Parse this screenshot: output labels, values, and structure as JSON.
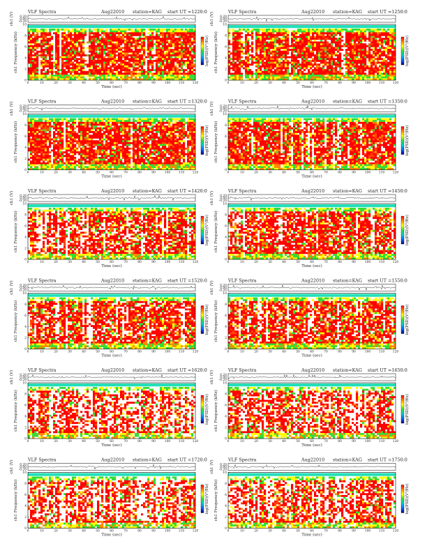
{
  "page": {
    "title_prefix": "VLF Spectra"
  },
  "colors": {
    "spectrogram": [
      "#ff0000",
      "#ff4400",
      "#ff8800",
      "#ffcc00",
      "#ffff00",
      "#99ee33",
      "#33dd33"
    ],
    "colorbar": [
      "#ff0000",
      "#ff8800",
      "#ffff00",
      "#33dd33",
      "#00cccc",
      "#0066ff",
      "#000088"
    ],
    "top_band": "#22e0b8",
    "trace": "#222222",
    "axis": "#000000"
  },
  "chart_data": [
    {
      "type": "heatmap",
      "header": {
        "title": "VLF Spectra",
        "date": "Aug22010",
        "station": "station=KAG",
        "start": "start UT =1220:0"
      },
      "trace_ylabel": "ch1 (V)",
      "trace_yticks": [
        "0.20",
        "0.00",
        "-0.20"
      ],
      "ylabel": "ch1\nFrequency (kHz)",
      "xlabel": "Time (sec)",
      "x": [
        0,
        10,
        20,
        30,
        40,
        50,
        60,
        70,
        80,
        90,
        100,
        110,
        120
      ],
      "y": [
        0,
        2,
        4,
        6,
        8,
        10
      ],
      "xlim": [
        0,
        120
      ],
      "ylim": [
        0,
        10
      ],
      "colorbar_label": "log(PSD)(V²/Hz)"
    },
    {
      "type": "heatmap",
      "header": {
        "title": "VLF Spectra",
        "date": "Aug22010",
        "station": "station=KAG",
        "start": "start UT =1250:0"
      },
      "trace_ylabel": "ch1 (V)",
      "trace_yticks": [
        "0.20",
        "0.00",
        "-0.20"
      ],
      "ylabel": "ch1\nFrequency (kHz)",
      "xlabel": "Time (sec)",
      "x": [
        0,
        10,
        20,
        30,
        40,
        50,
        60,
        70,
        80,
        90,
        100,
        110,
        120
      ],
      "y": [
        0,
        2,
        4,
        6,
        8,
        10
      ],
      "xlim": [
        0,
        120
      ],
      "ylim": [
        0,
        10
      ],
      "colorbar_label": "log(PSD)(V²/Hz)"
    },
    {
      "type": "heatmap",
      "header": {
        "title": "VLF Spectra",
        "date": "Aug22010",
        "station": "station=KAG",
        "start": "start UT =1320:0"
      },
      "trace_ylabel": "ch1 (V)",
      "trace_yticks": [
        "0.20",
        "0.00",
        "-0.20"
      ],
      "ylabel": "ch1\nFrequency (kHz)",
      "xlabel": "Time (sec)",
      "x": [
        0,
        10,
        20,
        30,
        40,
        50,
        60,
        70,
        80,
        90,
        100,
        110,
        120
      ],
      "y": [
        0,
        2,
        4,
        6,
        8,
        10
      ],
      "xlim": [
        0,
        120
      ],
      "ylim": [
        0,
        10
      ],
      "colorbar_label": "log(PSD)(V²/Hz)"
    },
    {
      "type": "heatmap",
      "header": {
        "title": "VLF Spectra",
        "date": "Aug22010",
        "station": "station=KAG",
        "start": "start UT =1350:0"
      },
      "trace_ylabel": "ch1 (V)",
      "trace_yticks": [
        "0.20",
        "0.00",
        "-0.20"
      ],
      "ylabel": "ch1\nFrequency (kHz)",
      "xlabel": "Time (sec)",
      "x": [
        0,
        10,
        20,
        30,
        40,
        50,
        60,
        70,
        80,
        90,
        100,
        110,
        120
      ],
      "y": [
        0,
        2,
        4,
        6,
        8,
        10
      ],
      "xlim": [
        0,
        120
      ],
      "ylim": [
        0,
        10
      ],
      "colorbar_label": "log(PSD)(V²/Hz)"
    },
    {
      "type": "heatmap",
      "header": {
        "title": "VLF Spectra",
        "date": "Aug22010",
        "station": "station=KAG",
        "start": "start UT =1420:0"
      },
      "trace_ylabel": "ch1 (V)",
      "trace_yticks": [
        "0.20",
        "0.00",
        "-0.20"
      ],
      "ylabel": "ch1\nFrequency (kHz)",
      "xlabel": "Time (sec)",
      "x": [
        0,
        10,
        20,
        30,
        40,
        50,
        60,
        70,
        80,
        90,
        100,
        110,
        120
      ],
      "y": [
        0,
        2,
        4,
        6,
        8,
        10
      ],
      "xlim": [
        0,
        120
      ],
      "ylim": [
        0,
        10
      ],
      "colorbar_label": "log(PSD)(V²/Hz)"
    },
    {
      "type": "heatmap",
      "header": {
        "title": "VLF Spectra",
        "date": "Aug22010",
        "station": "station=KAG",
        "start": "start UT =1450:0"
      },
      "trace_ylabel": "ch1 (V)",
      "trace_yticks": [
        "0.20",
        "0.00",
        "-0.20"
      ],
      "ylabel": "ch1\nFrequency (kHz)",
      "xlabel": "Time (sec)",
      "x": [
        0,
        10,
        20,
        30,
        40,
        50,
        60,
        70,
        80,
        90,
        100,
        110,
        120
      ],
      "y": [
        0,
        2,
        4,
        6,
        8,
        10
      ],
      "xlim": [
        0,
        120
      ],
      "ylim": [
        0,
        10
      ],
      "colorbar_label": "log(PSD)(V²/Hz)"
    },
    {
      "type": "heatmap",
      "header": {
        "title": "VLF Spectra",
        "date": "Aug22010",
        "station": "station=KAG",
        "start": "start UT =1520:0"
      },
      "trace_ylabel": "ch1 (V)",
      "trace_yticks": [
        "0.20",
        "0.00",
        "-0.20"
      ],
      "ylabel": "ch1\nFrequency (kHz)",
      "xlabel": "Time (sec)",
      "x": [
        0,
        10,
        20,
        30,
        40,
        50,
        60,
        70,
        80,
        90,
        100,
        110,
        120
      ],
      "y": [
        0,
        2,
        4,
        6,
        8,
        10
      ],
      "xlim": [
        0,
        120
      ],
      "ylim": [
        0,
        10
      ],
      "colorbar_label": "log(PSD)(V²/Hz)"
    },
    {
      "type": "heatmap",
      "header": {
        "title": "VLF Spectra",
        "date": "Aug22010",
        "station": "station=KAG",
        "start": "start UT =1550:0"
      },
      "trace_ylabel": "ch1 (V)",
      "trace_yticks": [
        "0.20",
        "0.00",
        "-0.20"
      ],
      "ylabel": "ch1\nFrequency (kHz)",
      "xlabel": "Time (sec)",
      "x": [
        0,
        10,
        20,
        30,
        40,
        50,
        60,
        70,
        80,
        90,
        100,
        110,
        120
      ],
      "y": [
        0,
        2,
        4,
        6,
        8,
        10
      ],
      "xlim": [
        0,
        120
      ],
      "ylim": [
        0,
        10
      ],
      "colorbar_label": "log(PSD)(V²/Hz)"
    },
    {
      "type": "heatmap",
      "header": {
        "title": "VLF Spectra",
        "date": "Aug22010",
        "station": "station=KAG",
        "start": "start UT =1620:0"
      },
      "trace_ylabel": "ch1 (V)",
      "trace_yticks": [
        "0.20",
        "0.00",
        "-0.20"
      ],
      "ylabel": "ch1\nFrequency (kHz)",
      "xlabel": "Time (sec)",
      "x": [
        0,
        10,
        20,
        30,
        40,
        50,
        60,
        70,
        80,
        90,
        100,
        110,
        120
      ],
      "y": [
        0,
        2,
        4,
        6,
        8,
        10
      ],
      "xlim": [
        0,
        120
      ],
      "ylim": [
        0,
        10
      ],
      "colorbar_label": "log(PSD)(V²/Hz)"
    },
    {
      "type": "heatmap",
      "header": {
        "title": "VLF Spectra",
        "date": "Aug22010",
        "station": "station=KAG",
        "start": "start UT =1650:0"
      },
      "trace_ylabel": "ch1 (V)",
      "trace_yticks": [
        "0.20",
        "0.00",
        "-0.20"
      ],
      "ylabel": "ch1\nFrequency (kHz)",
      "xlabel": "Time (sec)",
      "x": [
        0,
        10,
        20,
        30,
        40,
        50,
        60,
        70,
        80,
        90,
        100,
        110,
        120
      ],
      "y": [
        0,
        2,
        4,
        6,
        8,
        10
      ],
      "xlim": [
        0,
        120
      ],
      "ylim": [
        0,
        10
      ],
      "colorbar_label": "log(PSD)(V²/Hz)"
    },
    {
      "type": "heatmap",
      "header": {
        "title": "VLF Spectra",
        "date": "Aug22010",
        "station": "station=KAG",
        "start": "start UT =1720:0"
      },
      "trace_ylabel": "ch1 (V)",
      "trace_yticks": [
        "0.20",
        "0.00",
        "-0.20"
      ],
      "ylabel": "ch1\nFrequency (kHz)",
      "xlabel": "Time (sec)",
      "x": [
        0,
        10,
        20,
        30,
        40,
        50,
        60,
        70,
        80,
        90,
        100,
        110,
        120
      ],
      "y": [
        0,
        2,
        4,
        6,
        8,
        10
      ],
      "xlim": [
        0,
        120
      ],
      "ylim": [
        0,
        10
      ],
      "colorbar_label": "log(PSD)(V²/Hz)"
    },
    {
      "type": "heatmap",
      "header": {
        "title": "VLF Spectra",
        "date": "Aug22010",
        "station": "station=KAG",
        "start": "start UT =1750:0"
      },
      "trace_ylabel": "ch1 (V)",
      "trace_yticks": [
        "0.20",
        "0.00",
        "-0.20"
      ],
      "ylabel": "ch1\nFrequency (kHz)",
      "xlabel": "Time (sec)",
      "x": [
        0,
        10,
        20,
        30,
        40,
        50,
        60,
        70,
        80,
        90,
        100,
        110,
        120
      ],
      "y": [
        0,
        2,
        4,
        6,
        8,
        10
      ],
      "xlim": [
        0,
        120
      ],
      "ylim": [
        0,
        10
      ],
      "colorbar_label": "log(PSD)(V²/Hz)"
    }
  ]
}
